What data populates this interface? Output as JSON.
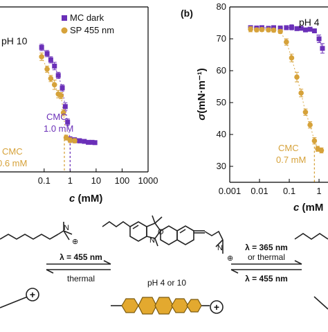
{
  "colors": {
    "mc": "#6a2fb8",
    "sp": "#d6a23a",
    "ink": "#111111",
    "hex": "#e3a92f"
  },
  "chart_data": [
    {
      "type": "scatter",
      "panel_label": "",
      "condition_label": "pH 10",
      "xlabel_var": "c",
      "xlabel_unit": " (mM)",
      "ylabel": "",
      "xscale": "log",
      "xlim": [
        0.002,
        1000
      ],
      "ylim": [
        27,
        80
      ],
      "xticks": [
        "0.1",
        "1",
        "10",
        "100",
        "1000"
      ],
      "yticks": [],
      "legend": {
        "placement": "top-right",
        "entries": [
          "MC dark",
          "SP 455 nm"
        ]
      },
      "series": [
        {
          "name": "MC dark",
          "marker": "square",
          "color": "#6a2fb8",
          "x": [
            0.08,
            0.13,
            0.18,
            0.25,
            0.35,
            0.5,
            0.65,
            0.8,
            1.0,
            1.5,
            2.3,
            3.5,
            5,
            7,
            9
          ],
          "y": [
            67,
            65,
            63,
            61,
            58,
            54,
            48,
            43,
            37.5,
            37.2,
            37,
            36.8,
            36.5,
            36.5,
            36.4
          ],
          "err": [
            1.0,
            1.0,
            1.0,
            1.2,
            1.0,
            1.0,
            1.2,
            1.0,
            0.8,
            0.8,
            0.7,
            0.6,
            0.6,
            0.5,
            0.5
          ]
        },
        {
          "name": "SP 455 nm",
          "marker": "circle",
          "color": "#d6a23a",
          "x": [
            0.08,
            0.13,
            0.18,
            0.25,
            0.35,
            0.45,
            0.55,
            0.7,
            1.0,
            1.5
          ],
          "y": [
            64,
            60,
            57,
            55,
            52,
            51.5,
            46,
            38,
            37.2,
            37
          ],
          "err": [
            1.2,
            1.0,
            1.0,
            1.5,
            1.2,
            1.0,
            1.0,
            0.8,
            0.8,
            0.7
          ]
        }
      ],
      "annotations": [
        {
          "text": "CMC",
          "color": "#6a2fb8"
        },
        {
          "text": "1.0 mM",
          "color": "#6a2fb8"
        },
        {
          "text": "CMC",
          "color": "#d6a23a"
        },
        {
          "text": "0.6 mM",
          "color": "#d6a23a"
        }
      ],
      "cmc_lines": [
        {
          "x": 1.0,
          "color": "#6a2fb8"
        },
        {
          "x": 0.6,
          "color": "#d6a23a"
        }
      ]
    },
    {
      "type": "scatter",
      "panel_label": "(b)",
      "condition_label": "pH 4",
      "xlabel_var": "c",
      "xlabel_unit": " (mM",
      "ylabel_var": "σ",
      "ylabel_unit": "(mN·m⁻¹)",
      "xscale": "log",
      "xlim": [
        0.001,
        2
      ],
      "ylim": [
        25,
        80
      ],
      "xticks": [
        "0.001",
        "0.01",
        "0.1",
        "1"
      ],
      "yticks": [
        "30",
        "40",
        "50",
        "60",
        "70",
        "80"
      ],
      "series": [
        {
          "name": "MC dark",
          "marker": "square",
          "color": "#6a2fb8",
          "x": [
            0.005,
            0.008,
            0.012,
            0.02,
            0.03,
            0.05,
            0.08,
            0.12,
            0.18,
            0.25,
            0.35,
            0.5,
            0.7,
            1.0,
            1.3
          ],
          "y": [
            73.5,
            73.4,
            73.5,
            73.3,
            73.5,
            73.4,
            73.5,
            73.6,
            73.2,
            73.3,
            72.8,
            73.0,
            72.5,
            70,
            67
          ],
          "err": [
            0.6,
            0.6,
            0.6,
            0.6,
            0.6,
            0.6,
            0.6,
            0.8,
            0.6,
            0.6,
            0.6,
            0.6,
            0.6,
            1.2,
            1.5
          ]
        },
        {
          "name": "SP 455 nm",
          "marker": "circle",
          "color": "#d6a23a",
          "x": [
            0.005,
            0.008,
            0.012,
            0.02,
            0.03,
            0.05,
            0.08,
            0.12,
            0.18,
            0.25,
            0.35,
            0.5,
            0.7,
            0.9,
            1.2
          ],
          "y": [
            73.0,
            72.8,
            72.9,
            72.8,
            72.7,
            72.3,
            69,
            64,
            58,
            53,
            47,
            43,
            38,
            35.5,
            35
          ],
          "err": [
            0.8,
            0.6,
            0.6,
            0.6,
            0.6,
            0.6,
            1.0,
            1.2,
            1.5,
            1.2,
            1.0,
            1.0,
            1.0,
            0.8,
            0.8
          ]
        }
      ],
      "annotations": [
        {
          "text": "CMC",
          "color": "#d6a23a"
        },
        {
          "text": "0.7 mM",
          "color": "#d6a23a"
        }
      ],
      "cmc_lines": [
        {
          "x": 0.7,
          "color": "#d6a23a"
        }
      ]
    }
  ],
  "scheme": {
    "left_arrow_top": "λ = 455 nm",
    "left_arrow_bottom": "thermal",
    "center_label": "pH 4 or 10",
    "right_arrow_top_1": "λ = 365 nm",
    "right_arrow_top_2": "or thermal",
    "right_arrow_bottom": "λ = 455 nm",
    "atom_n": "N",
    "atom_o": "O",
    "plus": "+",
    "plus_circled": "⊕"
  }
}
